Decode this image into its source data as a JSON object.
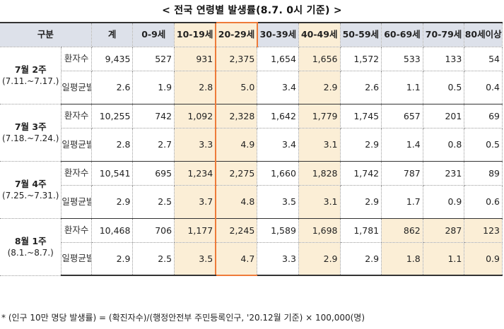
{
  "title": "< 전국 연령별 발생률(8.7. 0시 기준) >",
  "header": {
    "category": "구분",
    "columns": [
      "계",
      "0-9세",
      "10-19세",
      "20-29세",
      "30-39세",
      "40-49세",
      "50-59세",
      "60-69세",
      "70-79세",
      "80세이상"
    ]
  },
  "colors": {
    "highlight": "#fbeed6",
    "outline": "#ee7b3a",
    "header_bg": "#dde1ea"
  },
  "weeks": [
    {
      "name": "7월 2주",
      "range": "(7.11.~7.17.)",
      "count_label": "환자수",
      "rate_label": "일평균발생률",
      "counts": [
        "9,435",
        "527",
        "931",
        "2,375",
        "1,654",
        "1,656",
        "1,572",
        "533",
        "133",
        "54"
      ],
      "rates": [
        "2.6",
        "1.9",
        "2.8",
        "5.0",
        "3.4",
        "2.9",
        "2.6",
        "1.1",
        "0.5",
        "0.4"
      ]
    },
    {
      "name": "7월 3주",
      "range": "(7.18.~7.24.)",
      "count_label": "환자수",
      "rate_label": "일평균발생률",
      "counts": [
        "10,255",
        "742",
        "1,092",
        "2,328",
        "1,642",
        "1,779",
        "1,745",
        "657",
        "201",
        "69"
      ],
      "rates": [
        "2.8",
        "2.7",
        "3.3",
        "4.9",
        "3.4",
        "3.1",
        "2.9",
        "1.4",
        "0.8",
        "0.5"
      ]
    },
    {
      "name": "7월 4주",
      "range": "(7.25.~7.31.)",
      "count_label": "환자수",
      "rate_label": "일평균발생률",
      "counts": [
        "10,541",
        "695",
        "1,234",
        "2,275",
        "1,660",
        "1,828",
        "1,742",
        "787",
        "231",
        "89"
      ],
      "rates": [
        "2.9",
        "2.5",
        "3.7",
        "4.8",
        "3.5",
        "3.1",
        "2.9",
        "1.7",
        "0.9",
        "0.6"
      ]
    },
    {
      "name": "8월 1주",
      "range": "(8.1.~8.7.)",
      "count_label": "환자수",
      "rate_label": "일평균발생률",
      "counts": [
        "10,468",
        "706",
        "1,177",
        "2,245",
        "1,589",
        "1,698",
        "1,781",
        "862",
        "287",
        "123"
      ],
      "rates": [
        "2.9",
        "2.5",
        "3.5",
        "4.7",
        "3.3",
        "2.9",
        "2.9",
        "1.8",
        "1.1",
        "0.9"
      ]
    }
  ],
  "footnote": "* (인구 10만 명당 발생률) = (확진자수)/(행정안전부 주민등록인구, '20.12월 기준) × 100,000(명)"
}
